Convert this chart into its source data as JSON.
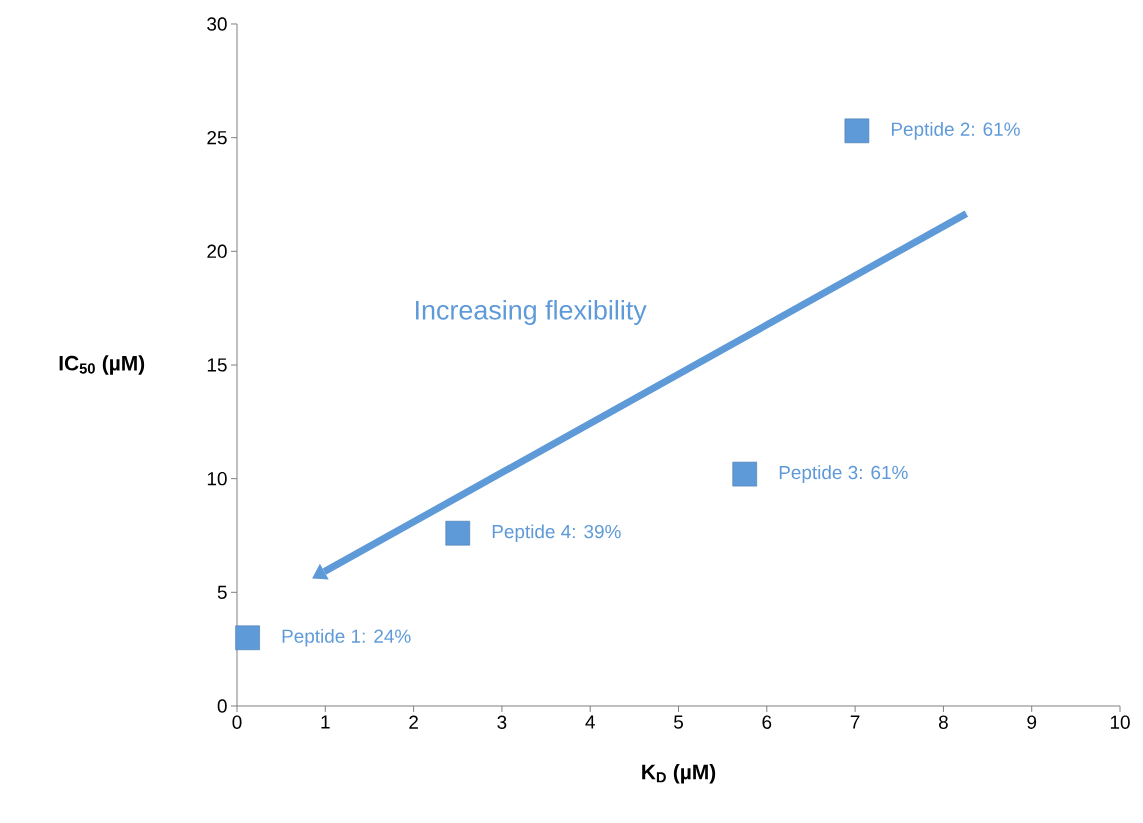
{
  "chart_data": {
    "type": "scatter",
    "xlabel": "K$_{D}$ (µM)",
    "ylabel": "IC$_{50}$ (µM)",
    "x": [
      0.12,
      7.02,
      5.75,
      2.5
    ],
    "series": [
      {
        "color": "#5f9ad8",
        "values": [
          3.0,
          25.3,
          10.2,
          7.6
        ],
        "value_labels": [
          "Peptide 1:  24%",
          "Peptide 2:  61%",
          "Peptide 3:  61%",
          "Peptide 4:  39%"
        ]
      }
    ],
    "marker": "square",
    "grid": false,
    "xlim": [
      0,
      10
    ],
    "ylim": [
      0,
      30
    ],
    "xticks": [
      0,
      1,
      2,
      3,
      4,
      5,
      6,
      7,
      8,
      9,
      10
    ],
    "yticks": [
      0,
      5,
      10,
      15,
      20,
      25,
      30
    ],
    "annotations": [
      "Increasing flexibility"
    ]
  }
}
